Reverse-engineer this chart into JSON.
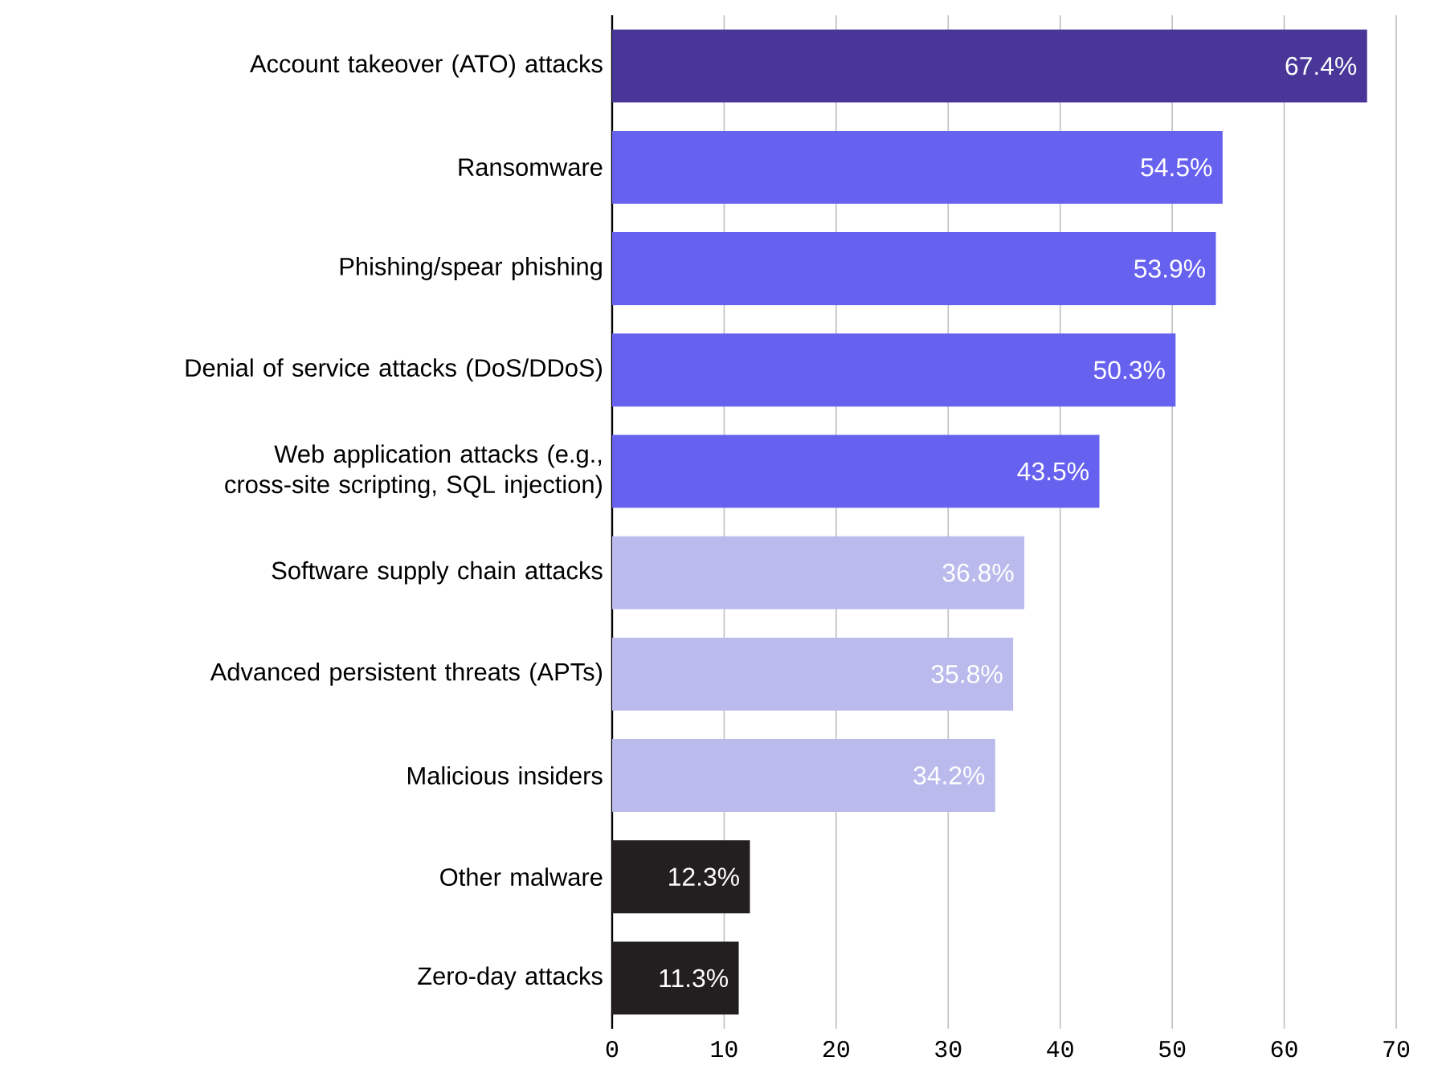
{
  "chart_data": {
    "type": "bar",
    "orientation": "horizontal",
    "categories": [
      "Account takeover (ATO) attacks",
      "Ransomware",
      "Phishing/spear phishing",
      "Denial of service attacks (DoS/DDoS)",
      "Web application attacks (e.g., cross-site scripting, SQL injection)",
      "Software supply chain attacks",
      "Advanced persistent threats (APTs)",
      "Malicious insiders",
      "Other malware",
      "Zero-day attacks"
    ],
    "values": [
      67.4,
      54.5,
      53.9,
      50.3,
      43.5,
      36.8,
      35.8,
      34.2,
      12.3,
      11.3
    ],
    "value_labels": [
      "67.4%",
      "54.5%",
      "53.9%",
      "50.3%",
      "43.5%",
      "36.8%",
      "35.8%",
      "34.2%",
      "12.3%",
      "11.3%"
    ],
    "colors": [
      "#483698",
      "#6761f0",
      "#6761f0",
      "#6761f0",
      "#6761f0",
      "#babaed",
      "#babaed",
      "#babaed",
      "#231f20",
      "#231f20"
    ],
    "xlim": [
      0,
      70
    ],
    "xticks": [
      0,
      10,
      20,
      30,
      40,
      50,
      60,
      70
    ],
    "grid": "x"
  }
}
